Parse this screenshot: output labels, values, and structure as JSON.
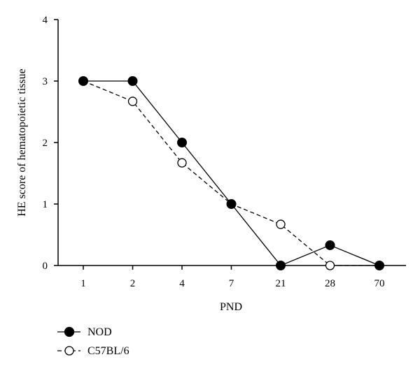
{
  "chart_data": {
    "type": "line",
    "title": "",
    "xlabel": "PND",
    "ylabel": "HE score of hematopoietic tissue",
    "categories": [
      "1",
      "2",
      "4",
      "7",
      "21",
      "28",
      "70"
    ],
    "ylim": [
      0,
      4
    ],
    "yticks": [
      "0",
      "1",
      "2",
      "3",
      "4"
    ],
    "grid": false,
    "legend_position": "bottom-left, below plot",
    "series": [
      {
        "name": "NOD",
        "values": [
          3,
          3,
          2,
          1,
          0,
          0.33,
          0
        ],
        "line_style": "solid",
        "marker": "filled-circle",
        "color": "#000000"
      },
      {
        "name": "C57BL/6",
        "values": [
          3,
          2.67,
          1.67,
          1,
          0.67,
          0,
          0
        ],
        "line_style": "dashed",
        "marker": "open-circle",
        "color": "#000000"
      }
    ]
  }
}
